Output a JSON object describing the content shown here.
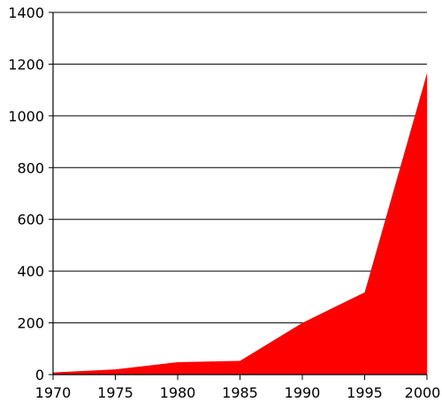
{
  "chart_data": {
    "type": "area",
    "title": "",
    "xlabel": "",
    "ylabel": "",
    "x": [
      1970,
      1975,
      1980,
      1985,
      1990,
      1995,
      2000
    ],
    "series": [
      {
        "name": "",
        "values": [
          8,
          20,
          48,
          53,
          200,
          318,
          1165
        ],
        "color": "#ff0000"
      }
    ],
    "xlim": [
      1970,
      2000
    ],
    "ylim": [
      0,
      1400
    ],
    "xticks": [
      "1970",
      "1975",
      "1980",
      "1985",
      "1990",
      "1995",
      "2000"
    ],
    "yticks": [
      "0",
      "200",
      "400",
      "600",
      "800",
      "1000",
      "1200",
      "1400"
    ],
    "grid": "horizontal",
    "legend": "none"
  }
}
